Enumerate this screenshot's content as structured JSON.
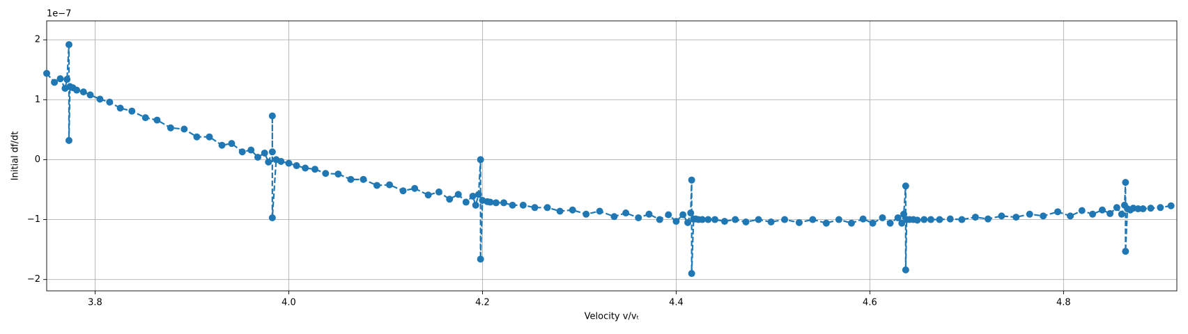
{
  "chart_data": {
    "type": "line",
    "x_label": "Velocity v/vₜ",
    "y_label": "Initial df/dt",
    "y_offset_label": "1e−7",
    "x": [
      3.75,
      3.758,
      3.764,
      3.769,
      3.771,
      3.773,
      3.773,
      3.774,
      3.777,
      3.781,
      3.788,
      3.795,
      3.805,
      3.815,
      3.826,
      3.838,
      3.852,
      3.864,
      3.878,
      3.892,
      3.905,
      3.918,
      3.931,
      3.941,
      3.952,
      3.961,
      3.968,
      3.975,
      3.979,
      3.983,
      3.983,
      3.983,
      3.987,
      3.992,
      4.0,
      4.008,
      4.017,
      4.027,
      4.038,
      4.051,
      4.064,
      4.077,
      4.091,
      4.104,
      4.118,
      4.13,
      4.144,
      4.155,
      4.166,
      4.175,
      4.183,
      4.19,
      4.193,
      4.196,
      4.198,
      4.198,
      4.2,
      4.205,
      4.208,
      4.214,
      4.222,
      4.231,
      4.242,
      4.254,
      4.267,
      4.28,
      4.293,
      4.307,
      4.321,
      4.336,
      4.348,
      4.361,
      4.372,
      4.383,
      4.392,
      4.4,
      4.407,
      4.412,
      4.415,
      4.416,
      4.416,
      4.418,
      4.42,
      4.423,
      4.427,
      4.433,
      4.44,
      4.45,
      4.461,
      4.472,
      4.485,
      4.498,
      4.512,
      4.527,
      4.541,
      4.555,
      4.568,
      4.581,
      4.593,
      4.603,
      4.613,
      4.621,
      4.629,
      4.633,
      4.635,
      4.637,
      4.637,
      4.638,
      4.641,
      4.645,
      4.649,
      4.656,
      4.663,
      4.672,
      4.683,
      4.695,
      4.709,
      4.722,
      4.736,
      4.751,
      4.765,
      4.779,
      4.794,
      4.807,
      4.819,
      4.83,
      4.84,
      4.848,
      4.855,
      4.86,
      4.863,
      4.864,
      4.864,
      4.866,
      4.869,
      4.872,
      4.877,
      4.882,
      4.89,
      4.9,
      4.911
    ],
    "series": [
      {
        "color": "#1f77b4",
        "values": [
          1.44,
          1.29,
          1.35,
          1.19,
          1.34,
          1.92,
          0.32,
          1.22,
          1.2,
          1.16,
          1.13,
          1.08,
          1.01,
          0.96,
          0.86,
          0.81,
          0.7,
          0.66,
          0.53,
          0.51,
          0.38,
          0.38,
          0.24,
          0.27,
          0.13,
          0.16,
          0.04,
          0.11,
          -0.04,
          0.13,
          0.73,
          -0.97,
          0.0,
          -0.03,
          -0.06,
          -0.1,
          -0.14,
          -0.16,
          -0.23,
          -0.24,
          -0.33,
          -0.33,
          -0.43,
          -0.42,
          -0.52,
          -0.48,
          -0.59,
          -0.54,
          -0.66,
          -0.58,
          -0.71,
          -0.61,
          -0.76,
          -0.58,
          0.0,
          -1.66,
          -0.68,
          -0.7,
          -0.71,
          -0.72,
          -0.72,
          -0.76,
          -0.76,
          -0.8,
          -0.8,
          -0.86,
          -0.84,
          -0.91,
          -0.86,
          -0.95,
          -0.89,
          -0.97,
          -0.91,
          -1.0,
          -0.92,
          -1.03,
          -0.92,
          -1.05,
          -0.89,
          -0.34,
          -1.9,
          -0.99,
          -0.99,
          -1.0,
          -1.0,
          -1.0,
          -1.0,
          -1.03,
          -1.0,
          -1.04,
          -1.0,
          -1.04,
          -1.0,
          -1.05,
          -1.0,
          -1.06,
          -1.0,
          -1.06,
          -0.99,
          -1.06,
          -0.97,
          -1.06,
          -0.97,
          -1.06,
          -0.91,
          -0.44,
          -1.84,
          -1.0,
          -1.0,
          -1.0,
          -1.01,
          -1.0,
          -1.0,
          -1.0,
          -0.99,
          -1.0,
          -0.96,
          -0.99,
          -0.94,
          -0.96,
          -0.91,
          -0.94,
          -0.87,
          -0.94,
          -0.85,
          -0.91,
          -0.84,
          -0.9,
          -0.8,
          -0.91,
          -0.76,
          -0.38,
          -1.53,
          -0.82,
          -0.84,
          -0.81,
          -0.82,
          -0.82,
          -0.81,
          -0.8,
          -0.77
        ]
      }
    ],
    "xlim": [
      3.75,
      4.917
    ],
    "ylim": [
      -2.19,
      2.316
    ],
    "xticks": [
      3.8,
      {
        "value": 4,
        "label": "4.0"
      },
      4.2,
      4.4,
      4.6,
      4.8
    ],
    "yticks": [
      {
        "value": -2,
        "label": "−2"
      },
      {
        "value": -1,
        "label": "−1"
      },
      0,
      1,
      2
    ],
    "grid": true,
    "line_style": "dashed",
    "marker": "circle"
  }
}
